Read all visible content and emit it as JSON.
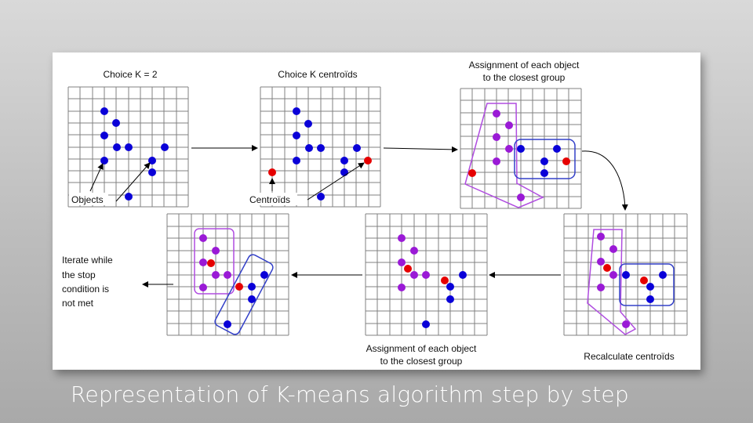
{
  "caption": "Representation of K-means algorithm step by step",
  "colors": {
    "object": "#0a00d8",
    "centroid": "#e60000",
    "assigned": "#9a1ad6",
    "group_a_outline": "#b04de0",
    "group_b_outline": "#3340c8",
    "grid": "#808080",
    "arrow": "#000000"
  },
  "step1": {
    "title": "Choice K = 2",
    "label_objects": "Objects"
  },
  "step2": {
    "title": "Choice K centroïds",
    "label_centroids": "Centroïds"
  },
  "step3": {
    "title_line1": "Assignment of each object",
    "title_line2": "to the closest group"
  },
  "step4": {
    "title": "Recalculate centroïds"
  },
  "step5": {
    "title_line1": "Assignment of each object",
    "title_line2": "to the closest group"
  },
  "step6": {
    "note_line1": "Iterate while",
    "note_line2": "the stop",
    "note_line3": "condition is",
    "note_line4": "not met"
  }
}
